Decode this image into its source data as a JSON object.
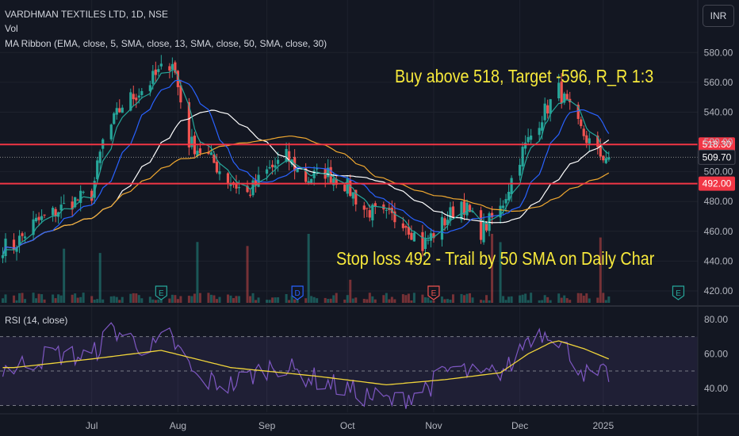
{
  "header": {
    "title": "VARDHMAN TEXTILES LTD, 1D, NSE",
    "vol": "Vol",
    "ribbon": "MA Ribbon (EMA, close, 5, SMA, close, 13, SMA, close, 50, SMA, close, 30)",
    "currency": "INR"
  },
  "annotations": {
    "buy": "Buy above 518, Target -596, R_R 1:3",
    "stop": "Stop loss 492 - Trail by 50 SMA on Daily Char"
  },
  "rsi_label": "RSI (14, close)",
  "colors": {
    "up": "#26a69a",
    "down": "#ef5350",
    "background": "#131722",
    "level": "#f23645",
    "annotation": "#f7e93b",
    "ma5": "#26a69a",
    "ma13": "#2962ff",
    "ma30": "#ffffff",
    "ma50": "#f0a830",
    "rsi": "#7e57c2",
    "rsi_ma": "#f0d43a"
  },
  "event_markers": [
    {
      "letter": "E",
      "x": "2024-07-26"
    },
    {
      "letter": "D",
      "x": "2024-09-13"
    },
    {
      "letter": "E",
      "x": "2024-11-01"
    },
    {
      "letter": "E",
      "x": "2025-01-28"
    }
  ],
  "chart_data": [
    {
      "type": "candlestick",
      "title": "VARDHMAN TEXTILES LTD, 1D, NSE",
      "x_ticks": [
        "Jul",
        "Aug",
        "Sep",
        "Oct",
        "Nov",
        "Dec",
        "2025"
      ],
      "x_tick_dates": [
        "2024-07-01",
        "2024-08-01",
        "2024-09-02",
        "2024-10-01",
        "2024-11-01",
        "2024-12-02",
        "2025-01-01"
      ],
      "x_range": [
        "2024-05-29",
        "2025-02-04"
      ],
      "y_ticks": [
        420,
        440,
        460,
        480,
        500,
        520,
        540,
        560,
        580
      ],
      "ylim": [
        412,
        594
      ],
      "closes": [
        {
          "d": "2024-06-03",
          "c": 450
        },
        {
          "d": "2024-06-10",
          "c": 465
        },
        {
          "d": "2024-06-17",
          "c": 472
        },
        {
          "d": "2024-06-24",
          "c": 480
        },
        {
          "d": "2024-07-01",
          "c": 485
        },
        {
          "d": "2024-07-05",
          "c": 520
        },
        {
          "d": "2024-07-12",
          "c": 545
        },
        {
          "d": "2024-07-19",
          "c": 555
        },
        {
          "d": "2024-07-26",
          "c": 568
        },
        {
          "d": "2024-07-30",
          "c": 575
        },
        {
          "d": "2024-08-05",
          "c": 520
        },
        {
          "d": "2024-08-12",
          "c": 510
        },
        {
          "d": "2024-08-19",
          "c": 495
        },
        {
          "d": "2024-08-26",
          "c": 485
        },
        {
          "d": "2024-09-02",
          "c": 500
        },
        {
          "d": "2024-09-09",
          "c": 510
        },
        {
          "d": "2024-09-16",
          "c": 495
        },
        {
          "d": "2024-09-23",
          "c": 500
        },
        {
          "d": "2024-09-30",
          "c": 492
        },
        {
          "d": "2024-10-07",
          "c": 475
        },
        {
          "d": "2024-10-14",
          "c": 470
        },
        {
          "d": "2024-10-21",
          "c": 468
        },
        {
          "d": "2024-10-28",
          "c": 450
        },
        {
          "d": "2024-11-04",
          "c": 465
        },
        {
          "d": "2024-11-11",
          "c": 480
        },
        {
          "d": "2024-11-18",
          "c": 460
        },
        {
          "d": "2024-11-25",
          "c": 475
        },
        {
          "d": "2024-12-02",
          "c": 510
        },
        {
          "d": "2024-12-09",
          "c": 535
        },
        {
          "d": "2024-12-16",
          "c": 555
        },
        {
          "d": "2024-12-23",
          "c": 530
        },
        {
          "d": "2024-12-30",
          "c": 512
        },
        {
          "d": "2025-01-03",
          "c": 509.7
        }
      ],
      "levels": [
        {
          "name": "resistance",
          "value": 518.3,
          "label": "518.30"
        },
        {
          "name": "current",
          "value": 509.7,
          "label": "509.70"
        },
        {
          "name": "support",
          "value": 492.0,
          "label": "492.00"
        }
      ]
    },
    {
      "type": "line",
      "title": "RSI (14, close)",
      "y_ticks": [
        40,
        60,
        80
      ],
      "y_tick_labels": [
        "40.00",
        "60.00",
        "80.00"
      ],
      "ylim": [
        27,
        85
      ],
      "bands": [
        30,
        50,
        70
      ],
      "series": [
        {
          "values_at": "rsi",
          "points": [
            {
              "d": "2024-06-03",
              "v": 52
            },
            {
              "d": "2024-06-17",
              "v": 60
            },
            {
              "d": "2024-07-01",
              "v": 58
            },
            {
              "d": "2024-07-08",
              "v": 75
            },
            {
              "d": "2024-07-22",
              "v": 62
            },
            {
              "d": "2024-07-29",
              "v": 70
            },
            {
              "d": "2024-08-08",
              "v": 45
            },
            {
              "d": "2024-08-20",
              "v": 42
            },
            {
              "d": "2024-09-05",
              "v": 54
            },
            {
              "d": "2024-09-20",
              "v": 45
            },
            {
              "d": "2024-10-07",
              "v": 36
            },
            {
              "d": "2024-10-18",
              "v": 32
            },
            {
              "d": "2024-10-31",
              "v": 42
            },
            {
              "d": "2024-11-08",
              "v": 52
            },
            {
              "d": "2024-11-18",
              "v": 46
            },
            {
              "d": "2024-11-28",
              "v": 52
            },
            {
              "d": "2024-12-05",
              "v": 70
            },
            {
              "d": "2024-12-13",
              "v": 74
            },
            {
              "d": "2024-12-19",
              "v": 62
            },
            {
              "d": "2024-12-27",
              "v": 46
            },
            {
              "d": "2025-01-03",
              "v": 48
            }
          ]
        },
        {
          "values_at": "rsi_ma",
          "points": [
            {
              "d": "2024-06-03",
              "v": 52
            },
            {
              "d": "2024-07-01",
              "v": 57
            },
            {
              "d": "2024-07-26",
              "v": 62
            },
            {
              "d": "2024-08-20",
              "v": 52
            },
            {
              "d": "2024-09-20",
              "v": 47
            },
            {
              "d": "2024-10-15",
              "v": 42
            },
            {
              "d": "2024-11-05",
              "v": 45
            },
            {
              "d": "2024-11-25",
              "v": 49
            },
            {
              "d": "2024-12-05",
              "v": 60
            },
            {
              "d": "2024-12-15",
              "v": 68
            },
            {
              "d": "2024-12-25",
              "v": 63
            },
            {
              "d": "2025-01-03",
              "v": 57
            }
          ]
        }
      ]
    }
  ]
}
